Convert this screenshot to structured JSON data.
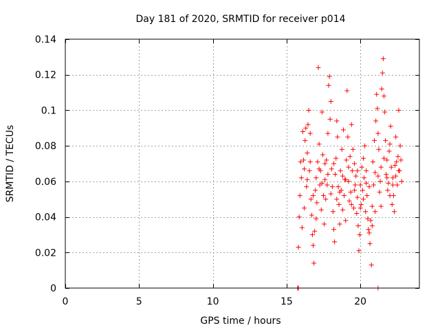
{
  "chart_data": {
    "type": "scatter",
    "title": "Day 181 of 2020, SRMTID for receiver p014",
    "xlabel": "GPS time / hours",
    "ylabel": "SRMTID / TECUs",
    "xlim": [
      0,
      24
    ],
    "ylim": [
      0,
      0.14
    ],
    "xticks": [
      0,
      5,
      10,
      15,
      20
    ],
    "xtick_labels": [
      "0",
      "5",
      "10",
      "15",
      "20"
    ],
    "yticks": [
      0,
      0.02,
      0.04,
      0.06,
      0.08,
      0.1,
      0.12,
      0.14
    ],
    "ytick_labels": [
      "0",
      "0.02",
      "0.04",
      "0.06",
      "0.08",
      "0.1",
      "0.12",
      "0.14"
    ],
    "grid": true,
    "marker": "+",
    "color": "#ff0000",
    "series": [
      {
        "name": "SRMTID",
        "points": [
          [
            15.75,
            0.0
          ],
          [
            15.8,
            0.0
          ],
          [
            21.2,
            0.0
          ],
          [
            15.8,
            0.023
          ],
          [
            15.85,
            0.04
          ],
          [
            15.9,
            0.052
          ],
          [
            15.95,
            0.071
          ],
          [
            16.0,
            0.062
          ],
          [
            16.05,
            0.034
          ],
          [
            16.1,
            0.088
          ],
          [
            16.15,
            0.072
          ],
          [
            16.2,
            0.045
          ],
          [
            16.25,
            0.083
          ],
          [
            16.3,
            0.09
          ],
          [
            16.35,
            0.057
          ],
          [
            16.4,
            0.076
          ],
          [
            16.45,
            0.092
          ],
          [
            16.5,
            0.1
          ],
          [
            16.55,
            0.066
          ],
          [
            16.6,
            0.087
          ],
          [
            16.65,
            0.05
          ],
          [
            16.7,
            0.041
          ],
          [
            16.75,
            0.03
          ],
          [
            16.8,
            0.024
          ],
          [
            16.85,
            0.014
          ],
          [
            16.9,
            0.032
          ],
          [
            16.95,
            0.055
          ],
          [
            17.0,
            0.062
          ],
          [
            17.05,
            0.048
          ],
          [
            17.1,
            0.071
          ],
          [
            17.15,
            0.124
          ],
          [
            17.2,
            0.081
          ],
          [
            17.25,
            0.058
          ],
          [
            17.3,
            0.066
          ],
          [
            17.35,
            0.044
          ],
          [
            17.4,
            0.099
          ],
          [
            17.45,
            0.075
          ],
          [
            17.5,
            0.052
          ],
          [
            17.55,
            0.036
          ],
          [
            17.6,
            0.061
          ],
          [
            17.65,
            0.05
          ],
          [
            17.7,
            0.072
          ],
          [
            17.75,
            0.058
          ],
          [
            17.8,
            0.087
          ],
          [
            17.85,
            0.114
          ],
          [
            17.9,
            0.119
          ],
          [
            17.95,
            0.095
          ],
          [
            18.0,
            0.105
          ],
          [
            18.05,
            0.067
          ],
          [
            18.1,
            0.057
          ],
          [
            18.15,
            0.043
          ],
          [
            18.2,
            0.033
          ],
          [
            18.25,
            0.026
          ],
          [
            18.3,
            0.064
          ],
          [
            18.35,
            0.073
          ],
          [
            18.4,
            0.094
          ],
          [
            18.45,
            0.085
          ],
          [
            18.5,
            0.057
          ],
          [
            18.55,
            0.047
          ],
          [
            18.6,
            0.036
          ],
          [
            18.65,
            0.066
          ],
          [
            18.7,
            0.055
          ],
          [
            18.75,
            0.078
          ],
          [
            18.8,
            0.044
          ],
          [
            18.85,
            0.089
          ],
          [
            18.9,
            0.052
          ],
          [
            18.95,
            0.061
          ],
          [
            19.0,
            0.038
          ],
          [
            19.05,
            0.072
          ],
          [
            19.1,
            0.111
          ],
          [
            19.15,
            0.085
          ],
          [
            19.2,
            0.06
          ],
          [
            19.25,
            0.049
          ],
          [
            19.3,
            0.074
          ],
          [
            19.35,
            0.054
          ],
          [
            19.4,
            0.092
          ],
          [
            19.45,
            0.066
          ],
          [
            19.5,
            0.078
          ],
          [
            19.55,
            0.045
          ],
          [
            19.6,
            0.07
          ],
          [
            19.65,
            0.058
          ],
          [
            19.7,
            0.063
          ],
          [
            19.75,
            0.042
          ],
          [
            19.8,
            0.051
          ],
          [
            19.85,
            0.035
          ],
          [
            19.9,
            0.021
          ],
          [
            19.95,
            0.03
          ],
          [
            20.0,
            0.058
          ],
          [
            20.05,
            0.047
          ],
          [
            20.1,
            0.068
          ],
          [
            20.15,
            0.055
          ],
          [
            20.2,
            0.073
          ],
          [
            20.25,
            0.062
          ],
          [
            20.3,
            0.08
          ],
          [
            20.35,
            0.043
          ],
          [
            20.4,
            0.066
          ],
          [
            20.45,
            0.052
          ],
          [
            20.5,
            0.039
          ],
          [
            20.55,
            0.033
          ],
          [
            20.6,
            0.031
          ],
          [
            20.65,
            0.025
          ],
          [
            20.7,
            0.038
          ],
          [
            20.75,
            0.013
          ],
          [
            20.8,
            0.046
          ],
          [
            20.85,
            0.071
          ],
          [
            20.9,
            0.058
          ],
          [
            20.95,
            0.083
          ],
          [
            21.0,
            0.065
          ],
          [
            21.05,
            0.094
          ],
          [
            21.1,
            0.109
          ],
          [
            21.15,
            0.101
          ],
          [
            21.2,
            0.087
          ],
          [
            21.25,
            0.078
          ],
          [
            21.3,
            0.054
          ],
          [
            21.35,
            0.06
          ],
          [
            21.4,
            0.046
          ],
          [
            21.45,
            0.112
          ],
          [
            21.5,
            0.121
          ],
          [
            21.55,
            0.129
          ],
          [
            21.6,
            0.108
          ],
          [
            21.65,
            0.099
          ],
          [
            21.7,
            0.083
          ],
          [
            21.75,
            0.064
          ],
          [
            21.8,
            0.072
          ],
          [
            21.85,
            0.055
          ],
          [
            21.9,
            0.059
          ],
          [
            21.95,
            0.077
          ],
          [
            22.0,
            0.081
          ],
          [
            22.05,
            0.091
          ],
          [
            22.1,
            0.068
          ],
          [
            22.15,
            0.047
          ],
          [
            22.2,
            0.062
          ],
          [
            22.25,
            0.052
          ],
          [
            22.3,
            0.043
          ],
          [
            22.35,
            0.069
          ],
          [
            22.4,
            0.085
          ],
          [
            22.45,
            0.071
          ],
          [
            22.5,
            0.058
          ],
          [
            22.55,
            0.074
          ],
          [
            22.6,
            0.1
          ],
          [
            22.65,
            0.066
          ],
          [
            22.7,
            0.08
          ],
          [
            22.75,
            0.072
          ],
          [
            22.8,
            0.06
          ],
          [
            16.2,
            0.067
          ],
          [
            16.6,
            0.071
          ],
          [
            17.0,
            0.039
          ],
          [
            17.4,
            0.059
          ],
          [
            17.8,
            0.064
          ],
          [
            18.2,
            0.07
          ],
          [
            18.6,
            0.054
          ],
          [
            19.0,
            0.061
          ],
          [
            19.4,
            0.047
          ],
          [
            19.8,
            0.066
          ],
          [
            20.2,
            0.05
          ],
          [
            20.6,
            0.057
          ],
          [
            21.0,
            0.043
          ],
          [
            21.4,
            0.068
          ],
          [
            21.8,
            0.062
          ],
          [
            22.2,
            0.058
          ],
          [
            22.6,
            0.066
          ],
          [
            16.4,
            0.061
          ],
          [
            16.8,
            0.052
          ],
          [
            17.2,
            0.067
          ],
          [
            17.6,
            0.07
          ],
          [
            18.0,
            0.053
          ],
          [
            18.4,
            0.05
          ],
          [
            18.8,
            0.063
          ],
          [
            19.2,
            0.068
          ],
          [
            19.6,
            0.055
          ],
          [
            20.0,
            0.045
          ],
          [
            20.4,
            0.059
          ],
          [
            20.8,
            0.035
          ],
          [
            21.2,
            0.063
          ],
          [
            21.6,
            0.073
          ],
          [
            22.0,
            0.052
          ],
          [
            22.4,
            0.063
          ]
        ]
      }
    ]
  }
}
